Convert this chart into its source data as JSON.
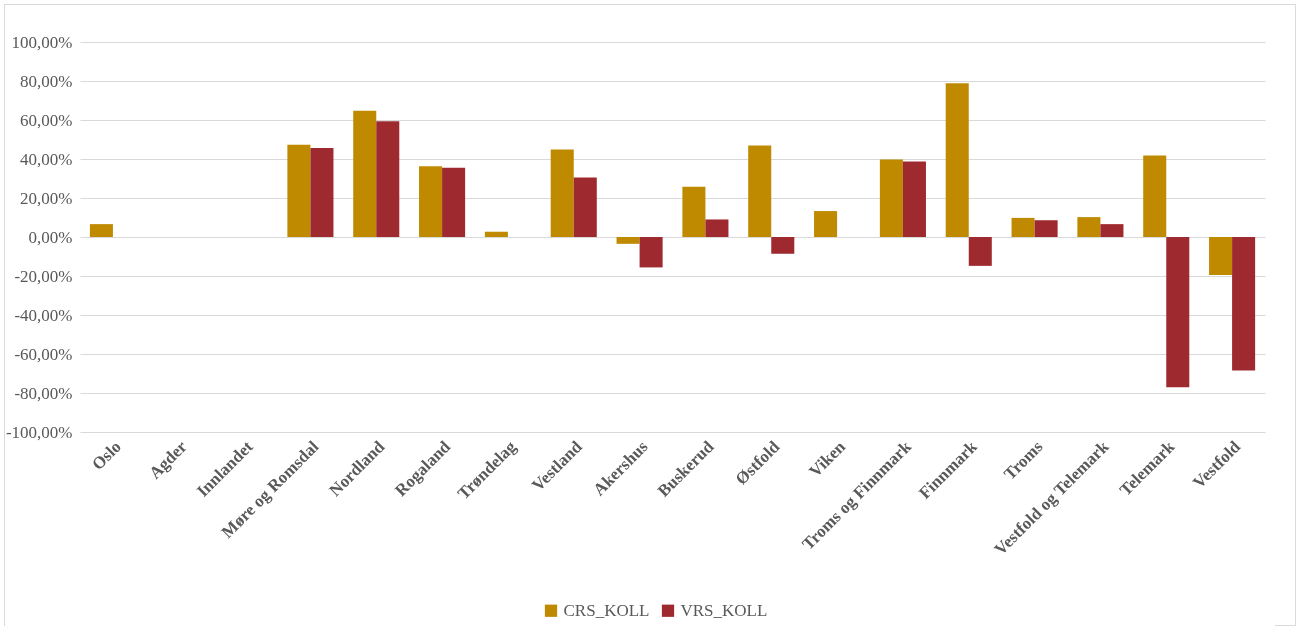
{
  "chart_data": {
    "type": "bar",
    "categories": [
      "Oslo",
      "Agder",
      "Innlandet",
      "Møre og Romsdal",
      "Nordland",
      "Rogaland",
      "Trøndelag",
      "Vestland",
      "Akershus",
      "Buskerud",
      "Østfold",
      "Viken",
      "Troms og Finnmark",
      "Finnmark",
      "Troms",
      "Vestfold og Telemark",
      "Telemark",
      "Vestfold"
    ],
    "series": [
      {
        "name": "CRS_KOLL",
        "color": "#bf8a00",
        "values": [
          6.6,
          null,
          null,
          47.3,
          64.8,
          36.3,
          2.7,
          44.9,
          -3.5,
          25.8,
          46.9,
          13.3,
          39.8,
          78.9,
          9.8,
          10.2,
          41.8,
          -19.5
        ]
      },
      {
        "name": "VRS_KOLL",
        "color": "#9e2a30",
        "values": [
          null,
          null,
          null,
          45.7,
          59.4,
          35.5,
          null,
          30.5,
          -15.6,
          9,
          -8.6,
          null,
          38.7,
          -14.8,
          8.6,
          6.6,
          -77,
          -68.4
        ]
      }
    ],
    "ylim": [
      -100,
      100
    ],
    "yticks": [
      {
        "value": -100,
        "label": "-100,00%"
      },
      {
        "value": -80,
        "label": "-80,00%"
      },
      {
        "value": -60,
        "label": "-60,00%"
      },
      {
        "value": -40,
        "label": "-40,00%"
      },
      {
        "value": -20,
        "label": "-20,00%"
      },
      {
        "value": 0,
        "label": "0,00%"
      },
      {
        "value": 20,
        "label": "20,00%"
      },
      {
        "value": 40,
        "label": "40,00%"
      },
      {
        "value": 60,
        "label": "60,00%"
      },
      {
        "value": 80,
        "label": "80,00%"
      },
      {
        "value": 100,
        "label": "100,00%"
      }
    ],
    "grid": "y",
    "legend": "bottom"
  }
}
